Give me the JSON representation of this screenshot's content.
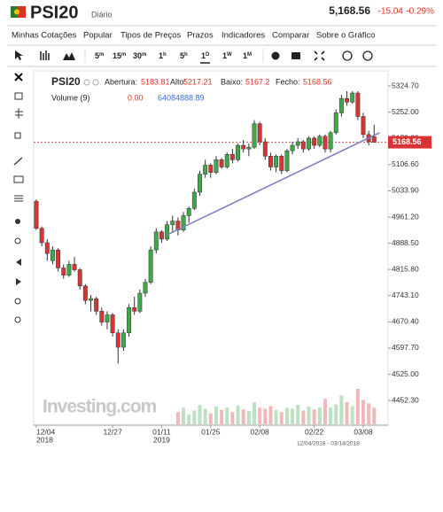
{
  "header": {
    "symbol": "PSI20",
    "period": "Diário",
    "price": "5,168.56",
    "change": "-15.04",
    "change_pct": "-0.29%"
  },
  "menu": [
    "Minhas Cotações",
    "Popular",
    "Tipos de Preços",
    "Prazos",
    "Indicadores",
    "Comparar",
    "Sobre o Gráfico"
  ],
  "toolbar": {
    "intervals": [
      {
        "n": "5",
        "u": "m"
      },
      {
        "n": "15",
        "u": "m"
      },
      {
        "n": "30",
        "u": "m"
      },
      {
        "n": "1",
        "u": "h"
      },
      {
        "n": "5",
        "u": "h"
      },
      {
        "n": "1",
        "u": "D"
      },
      {
        "n": "1",
        "u": "W"
      },
      {
        "n": "1",
        "u": "M"
      }
    ]
  },
  "chart_data": {
    "type": "candlestick",
    "title": "PSI20",
    "legend": {
      "open": "Abertura:",
      "high": "Alto:",
      "low": "Baixo:",
      "close": "Fecho:",
      "volume": "Volume (9)",
      "volume_values": [
        "0.00",
        "64084888.89"
      ]
    },
    "watermark": "Investing.com",
    "range_label": "12/04/2018 - 03/14/2018",
    "categories": [
      "12/04",
      null,
      null,
      null,
      null,
      null,
      null,
      null,
      null,
      null,
      null,
      null,
      null,
      null,
      "12/27",
      null,
      null,
      null,
      null,
      null,
      null,
      null,
      null,
      "01/11",
      null,
      null,
      null,
      null,
      null,
      null,
      null,
      null,
      "01/25",
      null,
      null,
      null,
      null,
      null,
      null,
      null,
      null,
      "02/08",
      null,
      null,
      null,
      null,
      null,
      null,
      null,
      null,
      null,
      "02/22",
      null,
      null,
      null,
      null,
      null,
      null,
      null,
      null,
      "03/08",
      null,
      null
    ],
    "category_years": [
      "2018",
      null,
      null,
      null,
      null,
      null,
      null,
      null,
      null,
      null,
      null,
      null,
      null,
      null,
      null,
      null,
      null,
      null,
      null,
      null,
      null,
      null,
      null,
      "2019",
      null,
      null,
      null,
      null,
      null,
      null,
      null,
      null,
      null,
      null,
      null,
      null,
      null,
      null,
      null,
      null,
      null,
      null,
      null,
      null,
      null,
      null,
      null,
      null,
      null,
      null,
      null,
      null,
      null,
      null,
      null,
      null,
      null,
      null,
      null,
      null,
      null,
      null,
      null
    ],
    "open": [
      5005,
      4930,
      4890,
      4840,
      4870,
      4820,
      4800,
      4830,
      4815,
      4770,
      4730,
      4735,
      4700,
      4670,
      4690,
      4640,
      4600,
      4640,
      4710,
      4700,
      4750,
      4780,
      4870,
      4920,
      4900,
      4940,
      4950,
      4925,
      4965,
      4985,
      5030,
      5080,
      5105,
      5085,
      5120,
      5100,
      5135,
      5120,
      5160,
      5150,
      5155,
      5220,
      5170,
      5130,
      5100,
      5130,
      5090,
      5145,
      5160,
      5170,
      5150,
      5180,
      5160,
      5185,
      5150,
      5195,
      5250,
      5290,
      5280,
      5305,
      5240,
      5190,
      5183.81
    ],
    "high": [
      5010,
      4935,
      4900,
      4880,
      4875,
      4830,
      4840,
      4850,
      4820,
      4775,
      4745,
      4740,
      4710,
      4700,
      4695,
      4650,
      4650,
      4720,
      4740,
      4760,
      4790,
      4880,
      4930,
      4925,
      4950,
      4965,
      4960,
      4975,
      4990,
      5040,
      5090,
      5120,
      5110,
      5130,
      5125,
      5140,
      5150,
      5165,
      5175,
      5165,
      5230,
      5225,
      5180,
      5140,
      5135,
      5135,
      5150,
      5170,
      5180,
      5175,
      5185,
      5185,
      5190,
      5190,
      5200,
      5260,
      5300,
      5310,
      5310,
      5310,
      5250,
      5200,
      5217.21
    ],
    "low": [
      4925,
      4880,
      4840,
      4830,
      4810,
      4790,
      4795,
      4810,
      4760,
      4720,
      4700,
      4690,
      4660,
      4650,
      4630,
      4555,
      4590,
      4630,
      4690,
      4695,
      4740,
      4775,
      4860,
      4890,
      4895,
      4920,
      4910,
      4920,
      4945,
      4980,
      5020,
      5070,
      5070,
      5080,
      5095,
      5095,
      5110,
      5115,
      5140,
      5130,
      5150,
      5160,
      5120,
      5090,
      5085,
      5080,
      5085,
      5135,
      5150,
      5140,
      5145,
      5150,
      5155,
      5140,
      5140,
      5190,
      5240,
      5270,
      5275,
      5230,
      5180,
      5160,
      5167.2
    ],
    "close": [
      4930,
      4890,
      4860,
      4870,
      4820,
      4800,
      4830,
      4815,
      4770,
      4730,
      4735,
      4700,
      4670,
      4690,
      4640,
      4600,
      4640,
      4710,
      4700,
      4750,
      4780,
      4870,
      4920,
      4900,
      4940,
      4950,
      4925,
      4965,
      4985,
      5030,
      5080,
      5105,
      5085,
      5120,
      5100,
      5135,
      5120,
      5160,
      5150,
      5155,
      5220,
      5170,
      5130,
      5100,
      5130,
      5090,
      5145,
      5160,
      5170,
      5150,
      5180,
      5160,
      5185,
      5150,
      5195,
      5250,
      5290,
      5280,
      5305,
      5240,
      5190,
      5170,
      5168.56
    ],
    "volume": [
      0,
      0,
      0,
      0,
      0,
      0,
      0,
      0,
      0,
      0,
      0,
      0,
      0,
      0,
      0,
      0,
      0,
      0,
      0,
      0,
      0,
      0,
      0,
      0,
      0,
      0,
      22000000,
      30000000,
      18000000,
      25000000,
      35000000,
      28000000,
      20000000,
      32000000,
      26000000,
      30000000,
      22000000,
      34000000,
      27000000,
      24000000,
      40000000,
      30000000,
      28000000,
      33000000,
      26000000,
      22000000,
      30000000,
      28000000,
      35000000,
      25000000,
      32000000,
      27000000,
      30000000,
      46000000,
      30000000,
      36000000,
      52000000,
      40000000,
      33000000,
      64084888.89,
      44000000,
      38000000,
      30000000
    ],
    "vlim": [
      0,
      80000000
    ],
    "ylim": [
      4384,
      5366.5
    ],
    "yticks": [
      {
        "value": 5324.7,
        "label": "5324.70"
      },
      {
        "value": 5252,
        "label": "5252.00"
      },
      {
        "value": 5179.3,
        "label": "5179.30"
      },
      {
        "value": 5106.6,
        "label": "5106.60"
      },
      {
        "value": 5033.9,
        "label": "5033.90"
      },
      {
        "value": 4961.2,
        "label": "4961.20"
      },
      {
        "value": 4888.5,
        "label": "4888.50"
      },
      {
        "value": 4815.8,
        "label": "4815.80"
      },
      {
        "value": 4743.1,
        "label": "4743.10"
      },
      {
        "value": 4670.4,
        "label": "4670.40"
      },
      {
        "value": 4597.7,
        "label": "4597.70"
      },
      {
        "value": 4525,
        "label": "4525.00"
      },
      {
        "value": 4452.3,
        "label": "4452.30"
      }
    ],
    "trendline": {
      "x": [
        24,
        63
      ],
      "y": [
        4912,
        5195
      ],
      "color": "#7b7fc4"
    },
    "up_color": "#3ea84a",
    "down_color": "#d93434",
    "price_line_color": "#e05050"
  }
}
